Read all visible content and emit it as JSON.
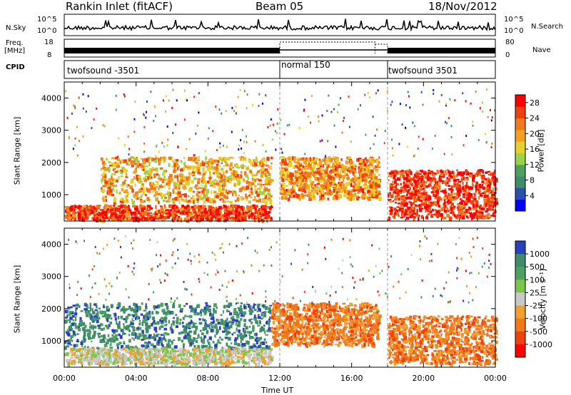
{
  "header": {
    "station": "Rankin Inlet (fitACF)",
    "beam": "Beam 05",
    "date": "18/Nov/2012"
  },
  "status_panels": {
    "nsky_label": "N.Sky",
    "nsky_ticks": [
      "10^5",
      "10^0"
    ],
    "nsearch_label": "N.Search",
    "nsearch_ticks": [
      "10^5",
      "10^0"
    ],
    "freq_label": "Freq.",
    "freq_unit": "[MHz]",
    "freq_ticks": [
      "18",
      "8"
    ],
    "nave_label": "Nave",
    "nave_ticks": [
      "80",
      "0"
    ],
    "cpid_label": "CPID",
    "cpid_segments": [
      {
        "label": "twofsound -3501",
        "start_hour": 0
      },
      {
        "label": "normal 150",
        "start_hour": 12
      },
      {
        "label": "twofsound 3501",
        "start_hour": 18
      }
    ]
  },
  "chart_data": [
    {
      "type": "heatmap",
      "title": "",
      "ylabel": "Slant Range [km]",
      "xlabel": "",
      "xlim_hours": [
        0,
        24
      ],
      "ylim_km": [
        180,
        4500
      ],
      "yticks": [
        1000,
        2000,
        3000,
        4000
      ],
      "colorbar": {
        "label": "Power [dB]",
        "ticks": [
          4,
          8,
          12,
          16,
          20,
          24,
          28
        ],
        "range": [
          0,
          30
        ],
        "colors": [
          "#0000ff",
          "#2b4fae",
          "#3f8c6a",
          "#4ca060",
          "#9bd24a",
          "#e8d02a",
          "#f6a021",
          "#f07a1a",
          "#f04010",
          "#ff0000"
        ]
      },
      "features": [
        {
          "hours": [
            0,
            11.5
          ],
          "range_km": [
            250,
            700
          ],
          "level_db": 27
        },
        {
          "hours": [
            2,
            11.5
          ],
          "range_km": [
            800,
            2200
          ],
          "level_db": 20
        },
        {
          "hours": [
            12,
            17.5
          ],
          "range_km": [
            900,
            2200
          ],
          "level_db": 22
        },
        {
          "hours": [
            18,
            24
          ],
          "range_km": [
            300,
            1800
          ],
          "level_db": 28
        }
      ]
    },
    {
      "type": "heatmap",
      "title": "",
      "ylabel": "Slant Range [km]",
      "xlabel": "Time UT",
      "xlim_hours": [
        0,
        24
      ],
      "ylim_km": [
        180,
        4500
      ],
      "yticks": [
        1000,
        2000,
        3000,
        4000
      ],
      "xticks": [
        "00:00",
        "04:00",
        "08:00",
        "12:00",
        "16:00",
        "20:00",
        "00:00"
      ],
      "colorbar": {
        "label": "Velocity [m s⁻¹]",
        "ticks": [
          "1000",
          "500",
          "100",
          "25",
          "-25",
          "-100",
          "-500",
          "-1000"
        ],
        "colors": [
          "#2a3fbf",
          "#3f8c6a",
          "#4ca060",
          "#7cc64a",
          "#c8c8c8",
          "#f0a030",
          "#f07a1a",
          "#f04010",
          "#ff0000"
        ]
      },
      "features": [
        {
          "hours": [
            0,
            11.5
          ],
          "range_km": [
            800,
            2200
          ],
          "velocity_ms": 300
        },
        {
          "hours": [
            0,
            11.5
          ],
          "range_km": [
            300,
            800
          ],
          "velocity_ms": 0
        },
        {
          "hours": [
            11.5,
            17.5
          ],
          "range_km": [
            900,
            2200
          ],
          "velocity_ms": -300
        },
        {
          "hours": [
            18,
            24
          ],
          "range_km": [
            300,
            1800
          ],
          "velocity_ms": -200
        }
      ]
    }
  ]
}
